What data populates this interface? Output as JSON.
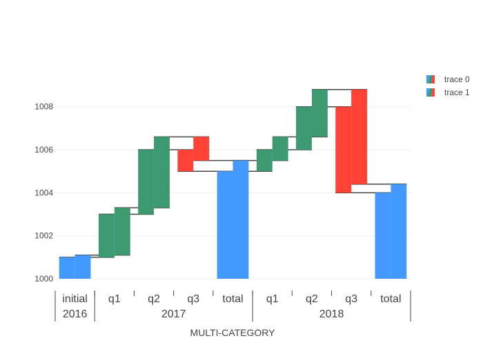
{
  "chart_data": {
    "type": "waterfall",
    "title": "",
    "xlabel": "MULTI-CATEGORY",
    "ylabel": "",
    "ylim": [
      1000,
      1009.5
    ],
    "y_ticks": [
      1000,
      1002,
      1004,
      1006,
      1008
    ],
    "grid": true,
    "legend_position": "top-right",
    "categories_outer": [
      "2016",
      "2017",
      "2018"
    ],
    "categories": [
      {
        "outer": "2016",
        "inner": "initial"
      },
      {
        "outer": "2017",
        "inner": "q1"
      },
      {
        "outer": "2017",
        "inner": "q2"
      },
      {
        "outer": "2017",
        "inner": "q3"
      },
      {
        "outer": "2017",
        "inner": "total"
      },
      {
        "outer": "2018",
        "inner": "q1"
      },
      {
        "outer": "2018",
        "inner": "q2"
      },
      {
        "outer": "2018",
        "inner": "q3"
      },
      {
        "outer": "2018",
        "inner": "total"
      }
    ],
    "colors": {
      "increasing": "#3d9970",
      "decreasing": "#ff4136",
      "totals": "#4499ff",
      "connector": "#444444",
      "grid": "#eeeeee"
    },
    "series": [
      {
        "name": "trace 0",
        "base": 1000,
        "measure": [
          "absolute",
          "relative",
          "relative",
          "relative",
          "total",
          "relative",
          "relative",
          "relative",
          "total"
        ],
        "values": [
          1,
          2,
          3,
          -1,
          null,
          1,
          2,
          -4,
          null
        ]
      },
      {
        "name": "trace 1",
        "base": 1000,
        "measure": [
          "absolute",
          "relative",
          "relative",
          "relative",
          "total",
          "relative",
          "relative",
          "relative",
          "total"
        ],
        "values": [
          1.1,
          2.2,
          3.3,
          -1.1,
          null,
          1.1,
          2.2,
          -4.4,
          null
        ]
      }
    ]
  }
}
